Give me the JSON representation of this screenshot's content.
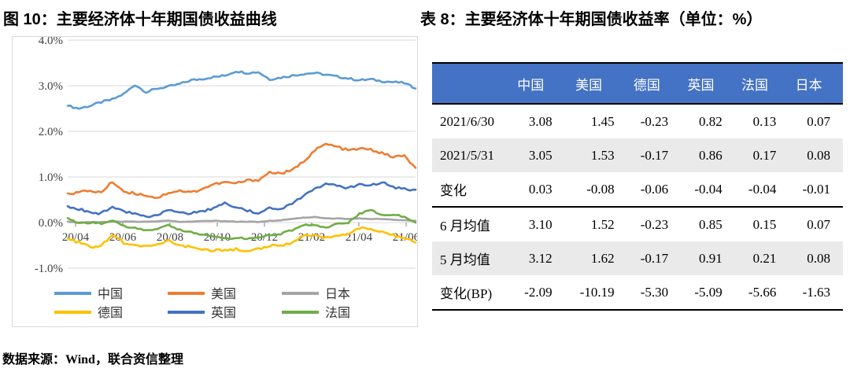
{
  "figure": {
    "title": "图 10：主要经济体十年期国债收益曲线",
    "source_note": "数据来源：Wind，联合资信整理"
  },
  "chart_data": {
    "type": "line",
    "title": "主要经济体十年期国债收益曲线",
    "x_ticklabels": [
      "20/04",
      "20/06",
      "20/08",
      "20/10",
      "20/12",
      "21/02",
      "21/04",
      "21/06"
    ],
    "y_ticklabels": [
      "4.0%",
      "3.0%",
      "2.0%",
      "1.0%",
      "0.0%",
      "-1.0%"
    ],
    "y_ticks": [
      4,
      3,
      2,
      1,
      0,
      -1
    ],
    "ylim": [
      -1.0,
      4.0
    ],
    "grid": true,
    "legend_position": "bottom",
    "x_note": "semi-monthly samples, 2020/04 through 2021/07",
    "series": [
      {
        "key": "china",
        "name": "中国",
        "color": "#5B9BD5",
        "values": [
          2.56,
          2.5,
          2.56,
          2.64,
          2.7,
          2.82,
          3.02,
          2.86,
          2.94,
          2.98,
          3.04,
          3.12,
          3.15,
          3.19,
          3.22,
          3.32,
          3.28,
          3.3,
          3.14,
          3.18,
          3.22,
          3.26,
          3.28,
          3.24,
          3.2,
          3.16,
          3.12,
          3.14,
          3.1,
          3.08,
          3.06,
          2.94
        ]
      },
      {
        "key": "us",
        "name": "美国",
        "color": "#ED7D31",
        "values": [
          0.64,
          0.66,
          0.7,
          0.66,
          0.9,
          0.68,
          0.64,
          0.6,
          0.54,
          0.66,
          0.7,
          0.66,
          0.74,
          0.84,
          0.88,
          0.86,
          0.92,
          0.94,
          1.1,
          1.08,
          1.14,
          1.34,
          1.58,
          1.72,
          1.66,
          1.58,
          1.62,
          1.6,
          1.52,
          1.44,
          1.46,
          1.2
        ]
      },
      {
        "key": "japan",
        "name": "日本",
        "color": "#A5A5A5",
        "values": [
          0.02,
          0.0,
          0.01,
          0.01,
          0.02,
          0.02,
          0.02,
          0.02,
          0.03,
          0.04,
          0.02,
          0.02,
          0.03,
          0.04,
          0.03,
          0.02,
          0.02,
          0.01,
          0.04,
          0.05,
          0.08,
          0.11,
          0.12,
          0.09,
          0.09,
          0.08,
          0.09,
          0.08,
          0.08,
          0.06,
          0.05,
          0.04
        ]
      },
      {
        "key": "germany",
        "name": "德国",
        "color": "#FFC000",
        "values": [
          -0.34,
          -0.44,
          -0.54,
          -0.5,
          -0.28,
          -0.44,
          -0.48,
          -0.52,
          -0.5,
          -0.4,
          -0.5,
          -0.54,
          -0.58,
          -0.62,
          -0.6,
          -0.58,
          -0.62,
          -0.58,
          -0.52,
          -0.5,
          -0.44,
          -0.28,
          -0.3,
          -0.34,
          -0.28,
          -0.24,
          -0.12,
          -0.16,
          -0.2,
          -0.28,
          -0.34,
          -0.44
        ]
      },
      {
        "key": "uk",
        "name": "英国",
        "color": "#4472C4",
        "values": [
          0.36,
          0.3,
          0.24,
          0.2,
          0.36,
          0.24,
          0.18,
          0.14,
          0.16,
          0.3,
          0.24,
          0.2,
          0.26,
          0.3,
          0.42,
          0.32,
          0.26,
          0.22,
          0.34,
          0.3,
          0.4,
          0.6,
          0.76,
          0.84,
          0.8,
          0.76,
          0.84,
          0.8,
          0.9,
          0.78,
          0.74,
          0.72
        ]
      },
      {
        "key": "france",
        "name": "法国",
        "color": "#70AD47",
        "values": [
          0.1,
          -0.02,
          0.0,
          -0.02,
          0.06,
          -0.08,
          -0.12,
          -0.16,
          -0.14,
          -0.06,
          -0.16,
          -0.22,
          -0.26,
          -0.3,
          -0.33,
          -0.35,
          -0.34,
          -0.32,
          -0.28,
          -0.24,
          -0.16,
          -0.06,
          -0.06,
          -0.1,
          -0.04,
          0.0,
          0.2,
          0.28,
          0.16,
          0.18,
          0.12,
          0.0
        ]
      }
    ],
    "draw_order": [
      "japan",
      "germany",
      "france",
      "uk",
      "us",
      "china"
    ],
    "legend_rows": [
      [
        "china",
        "us",
        "japan"
      ],
      [
        "germany",
        "uk",
        "france"
      ]
    ]
  },
  "table": {
    "title": "表 8：主要经济体十年期国债收益率（单位：%）",
    "columns": [
      "",
      "中国",
      "美国",
      "德国",
      "英国",
      "法国",
      "日本"
    ],
    "rows": [
      {
        "label": "2021/6/30",
        "values": [
          "3.08",
          "1.45",
          "-0.23",
          "0.82",
          "0.13",
          "0.07"
        ],
        "shaded": false,
        "rule_below": false
      },
      {
        "label": "2021/5/31",
        "values": [
          "3.05",
          "1.53",
          "-0.17",
          "0.86",
          "0.17",
          "0.08"
        ],
        "shaded": true,
        "rule_below": false
      },
      {
        "label": "变化",
        "values": [
          "0.03",
          "-0.08",
          "-0.06",
          "-0.04",
          "-0.04",
          "-0.01"
        ],
        "shaded": false,
        "rule_below": true
      },
      {
        "label": "6 月均值",
        "values": [
          "3.10",
          "1.52",
          "-0.23",
          "0.85",
          "0.15",
          "0.07"
        ],
        "shaded": false,
        "rule_below": false
      },
      {
        "label": "5 月均值",
        "values": [
          "3.12",
          "1.62",
          "-0.17",
          "0.91",
          "0.21",
          "0.08"
        ],
        "shaded": true,
        "rule_below": false
      },
      {
        "label": "变化(BP)",
        "values": [
          "-2.09",
          "-10.19",
          "-5.30",
          "-5.09",
          "-5.66",
          "-1.63"
        ],
        "shaded": false,
        "rule_below": false
      }
    ]
  },
  "colors": {
    "header_bg": "#4472C4",
    "header_text": "#FFFFFF",
    "row_shade": "#EAEAEA",
    "grid": "#D9D9D9",
    "chart_border": "#D9D9D9",
    "axis_text": "#404040",
    "tick": "#808080",
    "legend_text": "#333333"
  }
}
